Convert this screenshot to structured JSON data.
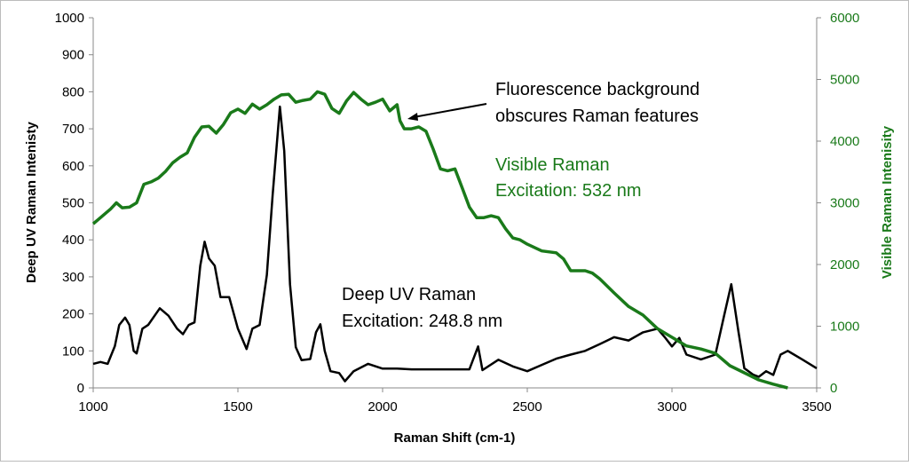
{
  "chart_data": {
    "type": "line",
    "xlabel": "Raman Shift (cm-1)",
    "ylabel_left": "Deep UV Raman Intenisty",
    "ylabel_right": "Visible Raman Intenisity",
    "xlim": [
      1000,
      3500
    ],
    "ylim_left": [
      0,
      1000
    ],
    "ylim_right": [
      0,
      6000
    ],
    "x_ticks": [
      "1000",
      "1500",
      "2000",
      "2500",
      "3000",
      "3500"
    ],
    "y_ticks_left": [
      "0",
      "100",
      "200",
      "300",
      "400",
      "500",
      "600",
      "700",
      "800",
      "900",
      "1000"
    ],
    "y_ticks_right": [
      "0",
      "1000",
      "2000",
      "3000",
      "4000",
      "5000",
      "6000"
    ],
    "grid": false,
    "colors": {
      "deep_uv": "#000000",
      "visible": "#1a7a1a"
    },
    "annotations": {
      "fluorescence_line1": "Fluorescence background",
      "fluorescence_line2": "obscures Raman features",
      "visible_line1": "Visible Raman",
      "visible_line2": "Excitation: 532 nm",
      "uv_line1": "Deep UV Raman",
      "uv_line2": "Excitation: 248.8 nm"
    },
    "series": [
      {
        "axis": "left",
        "x": [
          1000,
          1025,
          1050,
          1075,
          1090,
          1110,
          1125,
          1140,
          1150,
          1170,
          1190,
          1230,
          1260,
          1290,
          1310,
          1330,
          1350,
          1370,
          1385,
          1400,
          1420,
          1440,
          1470,
          1500,
          1530,
          1550,
          1575,
          1600,
          1620,
          1645,
          1660,
          1680,
          1700,
          1720,
          1750,
          1770,
          1785,
          1800,
          1820,
          1850,
          1870,
          1900,
          1950,
          2000,
          2050,
          2100,
          2200,
          2300,
          2330,
          2345,
          2400,
          2450,
          2500,
          2550,
          2600,
          2650,
          2700,
          2750,
          2800,
          2850,
          2900,
          2950,
          2975,
          3000,
          3025,
          3050,
          3100,
          3150,
          3180,
          3205,
          3230,
          3250,
          3280,
          3300,
          3325,
          3350,
          3375,
          3400,
          3450,
          3500
        ],
        "y": [
          65,
          70,
          65,
          113,
          170,
          190,
          170,
          100,
          93,
          160,
          170,
          215,
          195,
          160,
          145,
          170,
          177,
          330,
          395,
          350,
          330,
          245,
          245,
          160,
          105,
          160,
          170,
          305,
          520,
          760,
          640,
          280,
          110,
          75,
          78,
          150,
          172,
          100,
          45,
          40,
          18,
          45,
          65,
          52,
          52,
          50,
          50,
          50,
          112,
          48,
          76,
          58,
          45,
          62,
          79,
          90,
          100,
          118,
          137,
          128,
          150,
          160,
          137,
          112,
          135,
          90,
          77,
          90,
          195,
          280,
          150,
          53,
          36,
          30,
          45,
          35,
          90,
          100,
          77,
          53
        ]
      },
      {
        "axis": "right",
        "x": [
          1000,
          1025,
          1060,
          1080,
          1100,
          1125,
          1150,
          1175,
          1200,
          1225,
          1250,
          1275,
          1300,
          1325,
          1350,
          1375,
          1400,
          1425,
          1450,
          1475,
          1500,
          1525,
          1550,
          1575,
          1600,
          1625,
          1650,
          1675,
          1700,
          1725,
          1750,
          1775,
          1800,
          1825,
          1850,
          1875,
          1900,
          1925,
          1950,
          1975,
          2000,
          2025,
          2050,
          2060,
          2075,
          2100,
          2125,
          2150,
          2175,
          2200,
          2225,
          2250,
          2275,
          2300,
          2325,
          2350,
          2375,
          2400,
          2425,
          2450,
          2475,
          2500,
          2550,
          2600,
          2625,
          2650,
          2700,
          2725,
          2750,
          2800,
          2850,
          2900,
          2950,
          3000,
          3050,
          3100,
          3150,
          3200,
          3250,
          3300,
          3350,
          3400
        ],
        "y": [
          2660,
          2760,
          2900,
          3000,
          2920,
          2930,
          3000,
          3300,
          3340,
          3400,
          3510,
          3650,
          3740,
          3810,
          4060,
          4230,
          4240,
          4130,
          4270,
          4460,
          4520,
          4450,
          4600,
          4520,
          4590,
          4680,
          4750,
          4760,
          4630,
          4660,
          4680,
          4800,
          4760,
          4530,
          4450,
          4650,
          4790,
          4680,
          4590,
          4630,
          4680,
          4490,
          4590,
          4330,
          4200,
          4200,
          4230,
          4160,
          3870,
          3550,
          3520,
          3550,
          3240,
          2930,
          2760,
          2760,
          2790,
          2760,
          2580,
          2430,
          2400,
          2330,
          2220,
          2190,
          2090,
          1900,
          1900,
          1860,
          1770,
          1540,
          1320,
          1180,
          960,
          820,
          680,
          630,
          560,
          360,
          245,
          130,
          60,
          0
        ]
      }
    ]
  }
}
